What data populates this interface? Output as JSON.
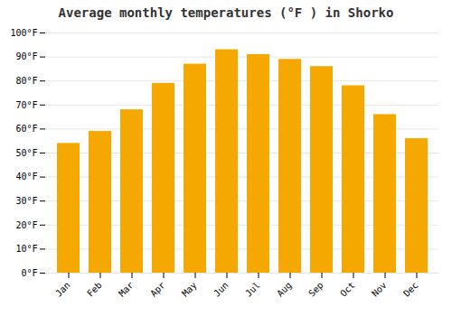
{
  "chart_data": {
    "type": "bar",
    "title": "Average monthly temperatures (°F ) in Shorko",
    "categories": [
      "Jan",
      "Feb",
      "Mar",
      "Apr",
      "May",
      "Jun",
      "Jul",
      "Aug",
      "Sep",
      "Oct",
      "Nov",
      "Dec"
    ],
    "values": [
      54,
      59,
      68,
      79,
      87,
      93,
      91,
      89,
      86,
      78,
      66,
      56
    ],
    "color": "#F5A800",
    "ylim": [
      0,
      100
    ],
    "yticks": [
      {
        "value": 0,
        "label": "0°F"
      },
      {
        "value": 10,
        "label": "10°F"
      },
      {
        "value": 20,
        "label": "20°F"
      },
      {
        "value": 30,
        "label": "30°F"
      },
      {
        "value": 40,
        "label": "40°F"
      },
      {
        "value": 50,
        "label": "50°F"
      },
      {
        "value": 60,
        "label": "60°F"
      },
      {
        "value": 70,
        "label": "70°F"
      },
      {
        "value": 80,
        "label": "80°F"
      },
      {
        "value": 90,
        "label": "90°F"
      },
      {
        "value": 100,
        "label": "100°F"
      }
    ],
    "grid": true
  }
}
